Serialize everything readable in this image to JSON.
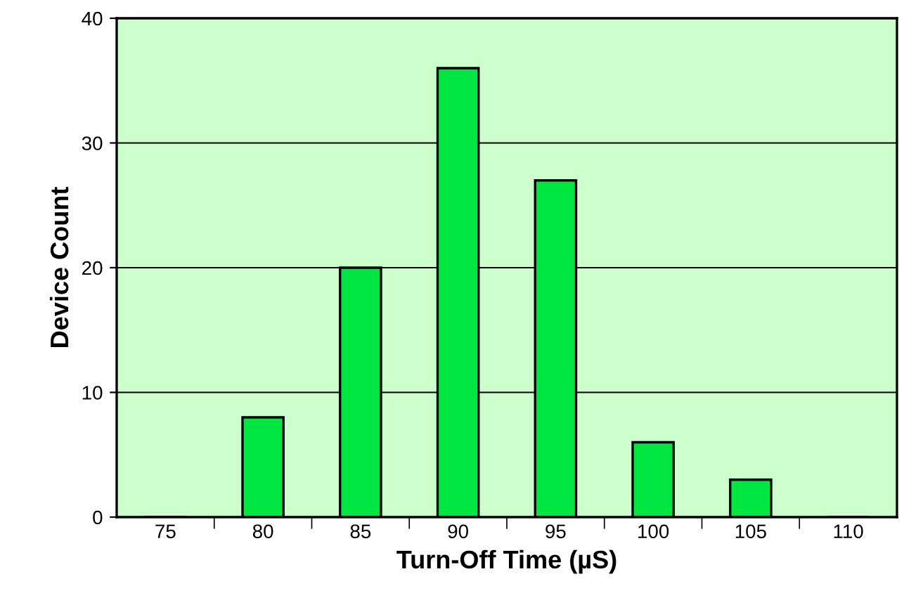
{
  "chart_data": {
    "type": "bar",
    "xlabel": "Turn-Off Time (µS)",
    "ylabel": "Device Count",
    "categories": [
      "75",
      "80",
      "85",
      "90",
      "95",
      "100",
      "105",
      "110"
    ],
    "values": [
      0,
      8,
      20,
      36,
      27,
      6,
      3,
      0
    ],
    "color": "#00e640",
    "ylim": [
      0,
      40
    ],
    "yticks": [
      0,
      10,
      20,
      30,
      40
    ],
    "grid": "y"
  }
}
